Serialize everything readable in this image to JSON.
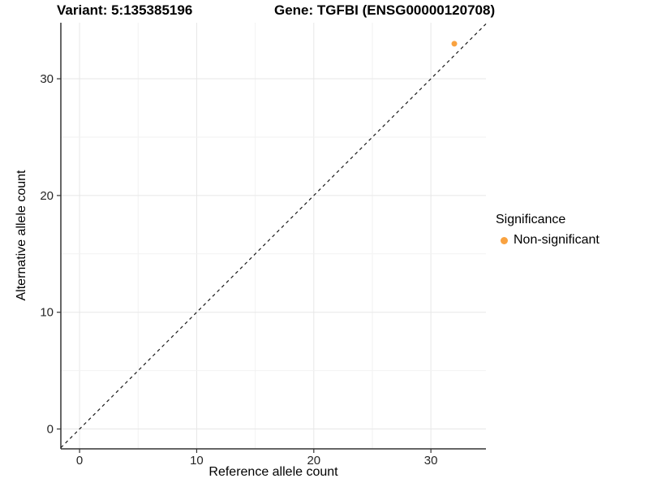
{
  "header": {
    "variant_title": "Variant: 5:135385196",
    "gene_title": "Gene: TGFBI (ENSG00000120708)"
  },
  "chart_data": {
    "type": "scatter",
    "title": "Variant: 5:135385196   Gene: TGFBI (ENSG00000120708)",
    "xlabel": "Reference allele count",
    "ylabel": "Alternative allele count",
    "xlim": [
      -1.6,
      34.7
    ],
    "ylim": [
      -1.7,
      34.8
    ],
    "x_ticks": [
      0,
      10,
      20,
      30
    ],
    "y_ticks": [
      0,
      10,
      20,
      30
    ],
    "minor_grid_step": 5,
    "grid": true,
    "points": [
      {
        "x": 32,
        "y": 33,
        "series": "Non-significant"
      }
    ],
    "identity_line": {
      "slope": 1,
      "intercept": 0,
      "linetype": "dashed"
    },
    "series": [
      {
        "name": "Non-significant",
        "color": "#F9A240"
      }
    ],
    "legend_position": "right"
  },
  "legend": {
    "title": "Significance",
    "items": [
      {
        "label": "Non-significant",
        "color": "#F9A240"
      }
    ]
  },
  "colors": {
    "point": "#F9A240",
    "axis": "#333333",
    "tick": "#333333",
    "tick_label": "#262626",
    "grid_major": "#e7e7e7",
    "grid_minor": "#f2f2f2",
    "dashed_line": "#1a1a1a",
    "background": "#ffffff"
  }
}
